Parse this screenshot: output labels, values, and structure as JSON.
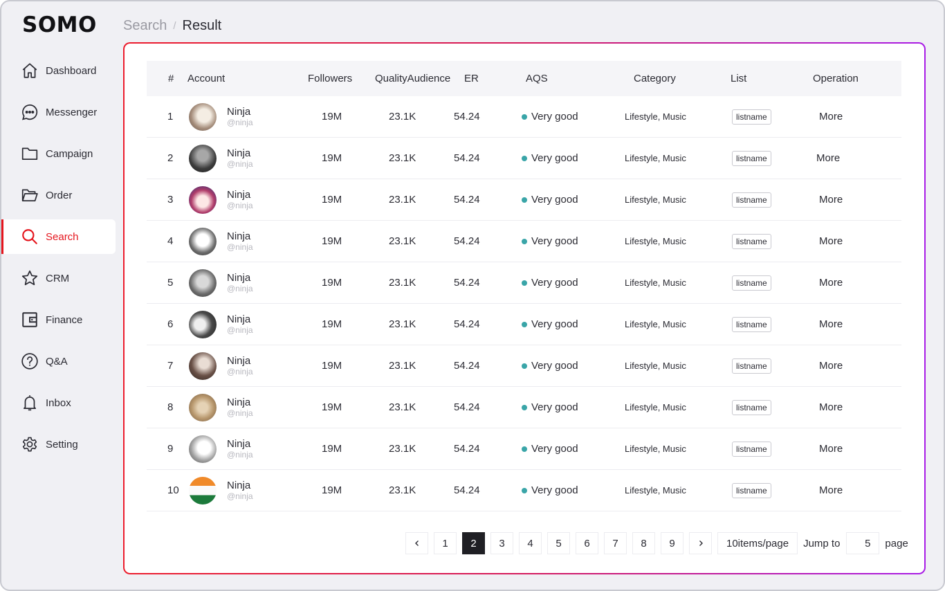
{
  "app": {
    "logo": "SOMO"
  },
  "breadcrumb": {
    "previous": "Search",
    "separator": "/",
    "current": "Result"
  },
  "sidebar": {
    "items": [
      {
        "label": "Dashboard",
        "icon": "home-icon"
      },
      {
        "label": "Messenger",
        "icon": "chat-bubble-icon"
      },
      {
        "label": "Campaign",
        "icon": "folder-icon"
      },
      {
        "label": "Order",
        "icon": "folder-open-icon"
      },
      {
        "label": "Search",
        "icon": "search-icon",
        "active": true
      },
      {
        "label": "CRM",
        "icon": "star-icon"
      },
      {
        "label": "Finance",
        "icon": "wallet-icon"
      },
      {
        "label": "Q&A",
        "icon": "question-icon"
      },
      {
        "label": "Inbox",
        "icon": "bell-icon"
      },
      {
        "label": "Setting",
        "icon": "gear-icon"
      }
    ]
  },
  "table": {
    "headers": {
      "num": "#",
      "account": "Account",
      "followers": "Followers",
      "quality": "QualityAudience",
      "er": "ER",
      "aqs": "AQS",
      "category": "Category",
      "list": "List",
      "operation": "Operation"
    },
    "rows": [
      {
        "num": "1",
        "name": "Ninja",
        "handle": "@ninja",
        "followers": "19M",
        "quality": "23.1K",
        "er": "54.24",
        "aqs": "Very good",
        "category": "Lifestyle, Music",
        "list": "listname",
        "operation": "More"
      },
      {
        "num": "2",
        "name": "Ninja",
        "handle": "@ninja",
        "followers": "19M",
        "quality": "23.1K",
        "er": "54.24",
        "aqs": "Very good",
        "category": "Lifestyle, Music",
        "list": "listname",
        "operation": "More"
      },
      {
        "num": "3",
        "name": "Ninja",
        "handle": "@ninja",
        "followers": "19M",
        "quality": "23.1K",
        "er": "54.24",
        "aqs": "Very good",
        "category": "Lifestyle, Music",
        "list": "listname",
        "operation": "More"
      },
      {
        "num": "4",
        "name": "Ninja",
        "handle": "@ninja",
        "followers": "19M",
        "quality": "23.1K",
        "er": "54.24",
        "aqs": "Very good",
        "category": "Lifestyle, Music",
        "list": "listname",
        "operation": "More"
      },
      {
        "num": "5",
        "name": "Ninja",
        "handle": "@ninja",
        "followers": "19M",
        "quality": "23.1K",
        "er": "54.24",
        "aqs": "Very good",
        "category": "Lifestyle, Music",
        "list": "listname",
        "operation": "More"
      },
      {
        "num": "6",
        "name": "Ninja",
        "handle": "@ninja",
        "followers": "19M",
        "quality": "23.1K",
        "er": "54.24",
        "aqs": "Very good",
        "category": "Lifestyle, Music",
        "list": "listname",
        "operation": "More"
      },
      {
        "num": "7",
        "name": "Ninja",
        "handle": "@ninja",
        "followers": "19M",
        "quality": "23.1K",
        "er": "54.24",
        "aqs": "Very good",
        "category": "Lifestyle, Music",
        "list": "listname",
        "operation": "More"
      },
      {
        "num": "8",
        "name": "Ninja",
        "handle": "@ninja",
        "followers": "19M",
        "quality": "23.1K",
        "er": "54.24",
        "aqs": "Very good",
        "category": "Lifestyle, Music",
        "list": "listname",
        "operation": "More"
      },
      {
        "num": "9",
        "name": "Ninja",
        "handle": "@ninja",
        "followers": "19M",
        "quality": "23.1K",
        "er": "54.24",
        "aqs": "Very good",
        "category": "Lifestyle, Music",
        "list": "listname",
        "operation": "More"
      },
      {
        "num": "10",
        "name": "Ninja",
        "handle": "@ninja",
        "followers": "19M",
        "quality": "23.1K",
        "er": "54.24",
        "aqs": "Very good",
        "category": "Lifestyle, Music",
        "list": "listname",
        "operation": "More"
      }
    ]
  },
  "pagination": {
    "pages": [
      "1",
      "2",
      "3",
      "4",
      "5",
      "6",
      "7",
      "8",
      "9"
    ],
    "current": "2",
    "page_size": "10items/page",
    "jump_label": "Jump to",
    "jump_value": "5",
    "page_suffix": "page"
  },
  "colors": {
    "accent": "#e5161e",
    "gradient_end": "#a81be6",
    "status_good": "#3aa5a8"
  }
}
